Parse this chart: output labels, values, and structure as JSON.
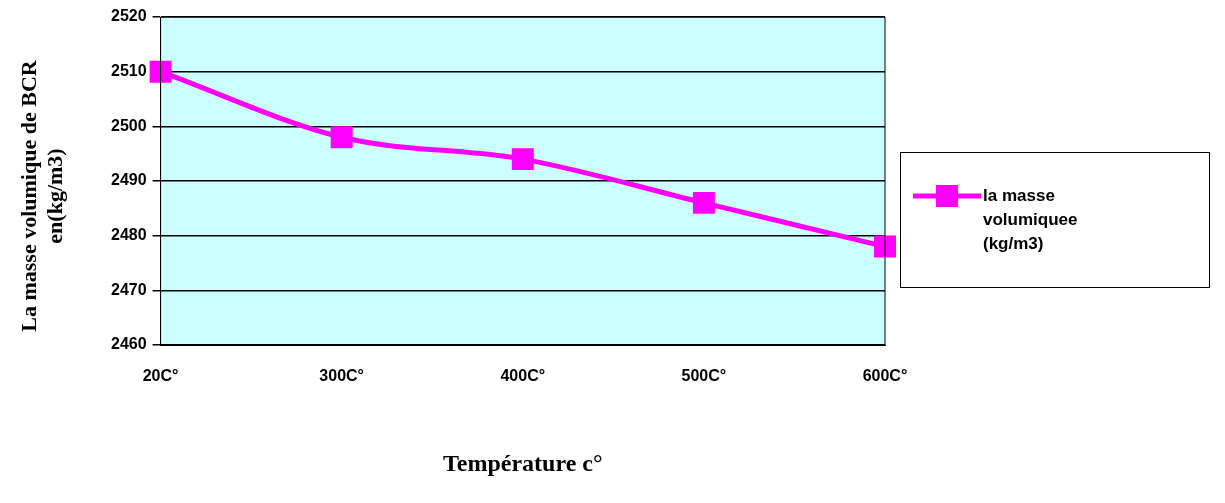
{
  "chart_data": {
    "type": "line",
    "xlabel": "Température c°",
    "ylabel": "La masse volumique de BCR en(kg/m3)",
    "categories": [
      "20C°",
      "300C°",
      "400C°",
      "500C°",
      "600C°"
    ],
    "series": [
      {
        "name": "la masse volumiquee (kg/m3)",
        "color": "#ff00ff",
        "values": [
          2510,
          2498,
          2494,
          2486,
          2478
        ]
      }
    ],
    "ylim": [
      2460,
      2520
    ],
    "yticks": [
      2460,
      2470,
      2480,
      2490,
      2500,
      2510,
      2520
    ],
    "grid": "y",
    "legend": "right",
    "marker": "square",
    "line_style": "solid"
  }
}
